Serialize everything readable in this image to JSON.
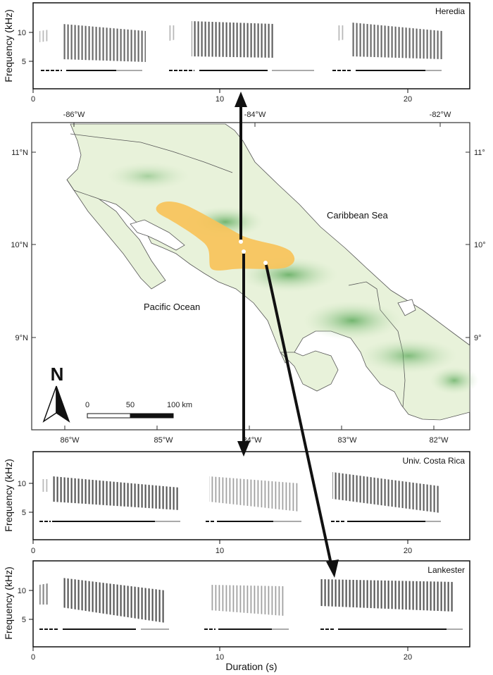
{
  "panels": [
    {
      "location": "Heredia",
      "y_label": "Frequency (kHz)",
      "y_ticks": [
        "10",
        "5"
      ],
      "x_ticks": [
        "0",
        "10",
        "20"
      ],
      "x_label": ""
    },
    {
      "location": "Univ. Costa Rica",
      "y_label": "Frequency (kHz)",
      "y_ticks": [
        "10",
        "5"
      ],
      "x_ticks": [
        "0",
        "10",
        "20"
      ],
      "x_label": ""
    },
    {
      "location": "Lankester",
      "y_label": "Frequency (kHz)",
      "y_ticks": [
        "10",
        "5"
      ],
      "x_ticks": [
        "0",
        "10",
        "20"
      ],
      "x_label": "Duration (s)"
    }
  ],
  "map": {
    "top_lon_labels": [
      "-86°W",
      "-84°W",
      "-82°W"
    ],
    "bottom_lon_labels": [
      "86°W",
      "85°W",
      "84°W",
      "83°W",
      "82°W"
    ],
    "left_lat_labels": [
      "11°N",
      "10°N",
      "9°N"
    ],
    "right_lat_labels": [
      "11°",
      "10°",
      "9°"
    ],
    "caribbean_label": "Caribbean Sea",
    "pacific_label": "Pacific Ocean",
    "north_label": "N",
    "scale_labels": [
      "0",
      "50",
      "100 km"
    ],
    "land_color": "#e8f2da",
    "highland_color": "#5fae5f",
    "range_color": "#f7c35a"
  }
}
